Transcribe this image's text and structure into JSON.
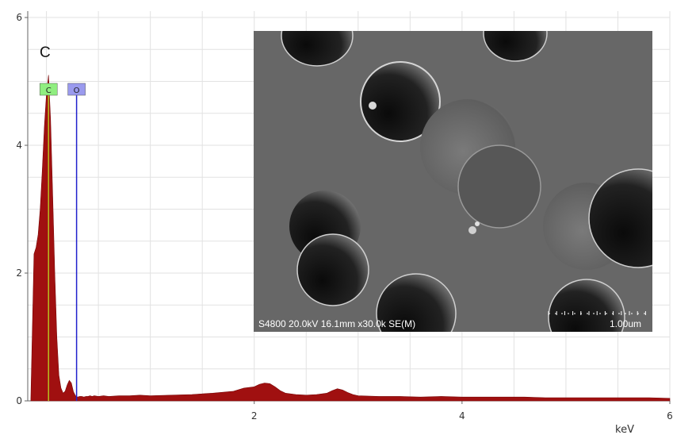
{
  "chart_data": {
    "type": "area",
    "xlabel": "keV",
    "ylabel": "",
    "xlim": [
      -0.18,
      6.0
    ],
    "ylim": [
      0,
      6.1
    ],
    "x_ticks": [
      2,
      4,
      6
    ],
    "y_ticks": [
      0,
      2,
      4,
      6
    ],
    "grid": true,
    "series": [
      {
        "color": "#a01010",
        "x": [
          -0.15,
          -0.12,
          -0.1,
          -0.08,
          -0.06,
          -0.04,
          -0.02,
          0.0,
          0.02,
          0.04,
          0.06,
          0.08,
          0.1,
          0.12,
          0.14,
          0.16,
          0.18,
          0.2,
          0.22,
          0.24,
          0.26,
          0.28,
          0.3,
          0.32,
          0.34,
          0.36,
          0.38,
          0.4,
          0.42,
          0.44,
          0.46,
          0.5,
          0.55,
          0.6,
          0.7,
          0.8,
          0.9,
          1.0,
          1.2,
          1.4,
          1.6,
          1.8,
          1.9,
          2.0,
          2.05,
          2.1,
          2.15,
          2.2,
          2.25,
          2.3,
          2.4,
          2.5,
          2.6,
          2.7,
          2.75,
          2.8,
          2.85,
          2.9,
          2.95,
          3.0,
          3.2,
          3.4,
          3.6,
          3.8,
          4.0,
          4.2,
          4.4,
          4.6,
          4.8,
          5.0,
          5.2,
          5.4,
          5.6,
          5.8,
          6.0
        ],
        "values": [
          0.03,
          2.3,
          2.4,
          2.6,
          3.0,
          3.6,
          4.3,
          4.8,
          5.1,
          4.4,
          3.2,
          2.0,
          1.0,
          0.4,
          0.2,
          0.12,
          0.15,
          0.25,
          0.32,
          0.28,
          0.14,
          0.08,
          0.06,
          0.07,
          0.07,
          0.06,
          0.07,
          0.07,
          0.08,
          0.07,
          0.08,
          0.07,
          0.08,
          0.07,
          0.08,
          0.08,
          0.09,
          0.08,
          0.09,
          0.1,
          0.12,
          0.15,
          0.2,
          0.22,
          0.26,
          0.28,
          0.27,
          0.22,
          0.16,
          0.12,
          0.1,
          0.09,
          0.1,
          0.12,
          0.16,
          0.19,
          0.17,
          0.13,
          0.1,
          0.08,
          0.07,
          0.07,
          0.06,
          0.07,
          0.06,
          0.06,
          0.06,
          0.06,
          0.05,
          0.05,
          0.05,
          0.05,
          0.05,
          0.05,
          0.04
        ]
      }
    ],
    "peak_label": "C",
    "element_markers": [
      {
        "label": "C",
        "x": 0.02,
        "color": "#90ee80",
        "line_color": "#b8c020"
      },
      {
        "label": "O",
        "x": 0.29,
        "color": "#9a9aee",
        "line_color": "#2020cc"
      }
    ],
    "inset": {
      "caption": "S4800 20.0kV 16.1mm x30.0k SE(M)",
      "scale_label": "1.00um"
    }
  }
}
